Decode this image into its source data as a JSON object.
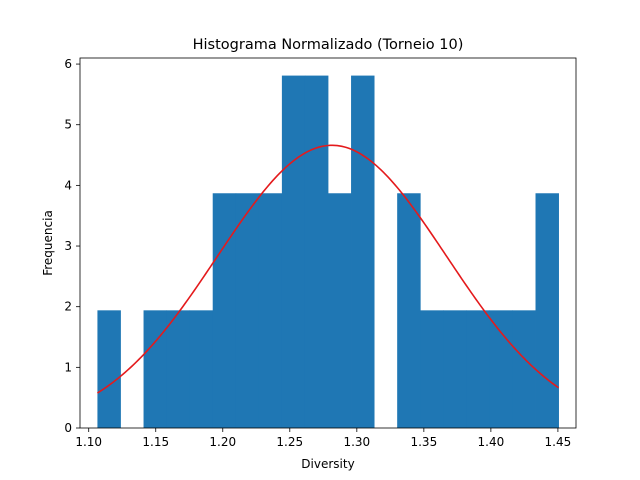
{
  "chart_data": {
    "type": "bar",
    "title": "Histograma Normalizado (Torneio 10)",
    "xlabel": "Diversity",
    "ylabel": "Frequencia",
    "xlim": [
      1.0935,
      1.4635
    ],
    "ylim": [
      0,
      6.1
    ],
    "xticks": [
      "1.10",
      "1.15",
      "1.20",
      "1.25",
      "1.30",
      "1.35",
      "1.40",
      "1.45"
    ],
    "yticks": [
      "0",
      "1",
      "2",
      "3",
      "4",
      "5",
      "6"
    ],
    "grid": false,
    "bar_color": "#1f77b4",
    "curve_color": "#e41a1c",
    "histogram": {
      "bin_edges": [
        1.1065,
        1.1237,
        1.1409,
        1.1581,
        1.1753,
        1.1925,
        1.2097,
        1.2269,
        1.2441,
        1.2613,
        1.2785,
        1.2957,
        1.3129,
        1.3301,
        1.3473,
        1.3645,
        1.3817,
        1.3989,
        1.4161,
        1.4333,
        1.4505
      ],
      "density": [
        1.94,
        0,
        1.94,
        1.94,
        1.94,
        3.87,
        3.87,
        3.87,
        5.81,
        5.81,
        3.87,
        5.81,
        0,
        3.87,
        1.94,
        1.94,
        1.94,
        1.94,
        1.94,
        3.87
      ]
    },
    "normal_fit": {
      "mean": 1.2815,
      "std": 0.0856,
      "x_range": [
        1.1065,
        1.4505
      ]
    }
  }
}
